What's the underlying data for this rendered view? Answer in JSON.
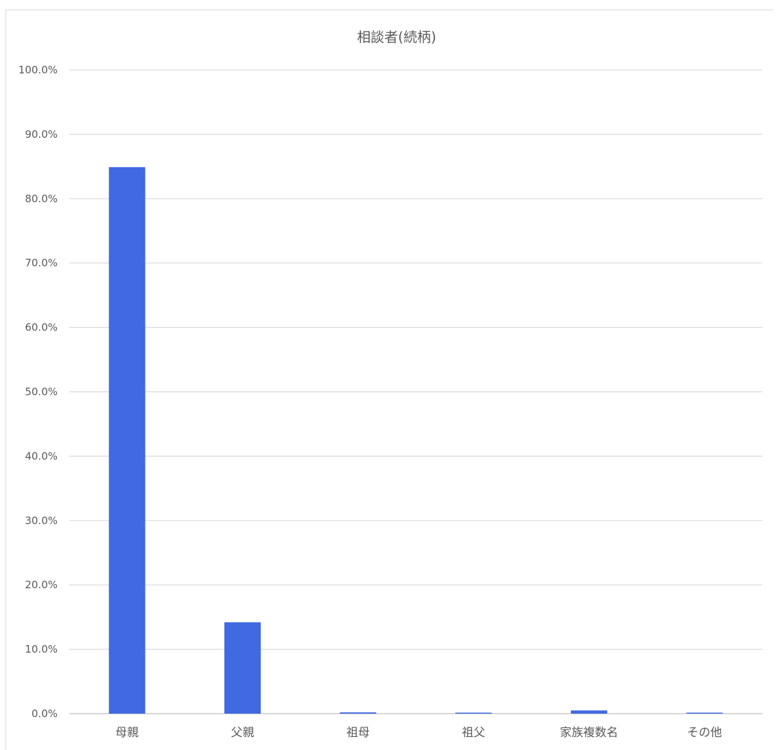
{
  "chart_data": {
    "type": "bar",
    "title": "相談者(続柄)",
    "xlabel": "",
    "ylabel": "",
    "categories": [
      "母親",
      "父親",
      "祖母",
      "祖父",
      "家族複数名",
      "その他"
    ],
    "values": [
      84.9,
      14.2,
      0.2,
      0.1,
      0.5,
      0.1
    ],
    "value_unit": "%",
    "ylim": [
      0,
      100
    ],
    "y_ticks": [
      "0.0%",
      "10.0%",
      "20.0%",
      "30.0%",
      "40.0%",
      "50.0%",
      "60.0%",
      "70.0%",
      "80.0%",
      "90.0%",
      "100.0%"
    ],
    "grid": true,
    "legend": "none",
    "bar_color": "#4169e1"
  }
}
